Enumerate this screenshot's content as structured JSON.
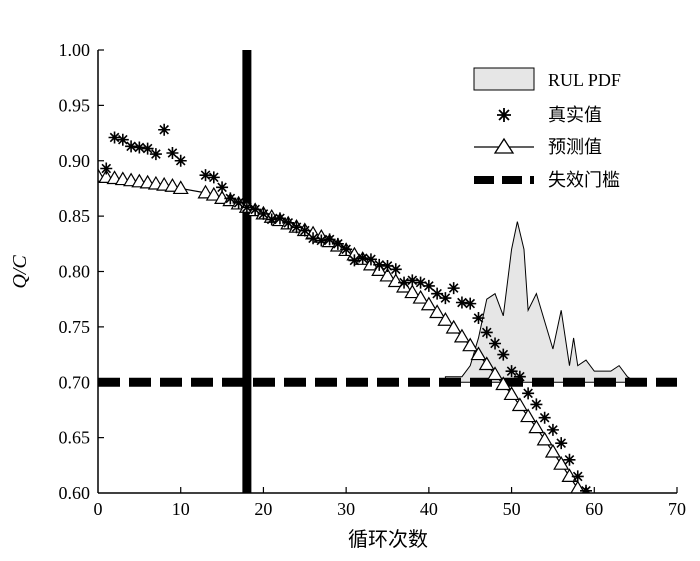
{
  "chart_data": {
    "type": "line",
    "xlabel": "循环次数",
    "ylabel": "Q/C",
    "xlim": [
      0,
      70
    ],
    "ylim": [
      0.6,
      1.0
    ],
    "xticks": [
      "0",
      "10",
      "20",
      "30",
      "40",
      "50",
      "60",
      "70"
    ],
    "yticks": [
      "0.60",
      "0.65",
      "0.70",
      "0.75",
      "0.80",
      "0.85",
      "0.90",
      "0.95",
      "1.00"
    ],
    "grid": false,
    "legend_position": "top-right",
    "prediction_start_x": 18,
    "threshold": 0.7,
    "series": [
      {
        "name": "RUL PDF",
        "kind": "pdf-area",
        "baseline": 0.7,
        "x": [
          42,
          44,
          45,
          46,
          47,
          48,
          49,
          50,
          50.7,
          51.5,
          52,
          53,
          54,
          55,
          56,
          57,
          57.5,
          58,
          59,
          60,
          61,
          62,
          63,
          64,
          65
        ],
        "y": [
          0.705,
          0.705,
          0.715,
          0.74,
          0.775,
          0.78,
          0.76,
          0.82,
          0.845,
          0.82,
          0.765,
          0.78,
          0.755,
          0.73,
          0.765,
          0.715,
          0.74,
          0.715,
          0.72,
          0.71,
          0.71,
          0.71,
          0.715,
          0.705,
          0.7
        ]
      },
      {
        "name": "真实值",
        "kind": "markers",
        "marker": "star",
        "x": [
          1,
          2,
          3,
          4,
          5,
          6,
          7,
          8,
          9,
          10,
          13,
          14,
          15,
          16,
          17,
          18,
          19,
          20,
          21,
          22,
          23,
          24,
          25,
          26,
          27,
          28,
          29,
          30,
          31,
          32,
          33,
          34,
          35,
          36,
          37,
          38,
          39,
          40,
          41,
          42,
          43,
          44,
          45,
          46,
          47,
          48,
          49,
          50,
          51,
          52,
          53,
          54,
          55,
          56,
          57,
          58,
          59
        ],
        "y": [
          0.893,
          0.921,
          0.919,
          0.913,
          0.912,
          0.911,
          0.906,
          0.928,
          0.907,
          0.9,
          0.887,
          0.885,
          0.876,
          0.866,
          0.862,
          0.858,
          0.856,
          0.852,
          0.847,
          0.848,
          0.844,
          0.84,
          0.837,
          0.83,
          0.828,
          0.829,
          0.825,
          0.82,
          0.81,
          0.812,
          0.811,
          0.806,
          0.805,
          0.802,
          0.79,
          0.792,
          0.79,
          0.787,
          0.78,
          0.776,
          0.785,
          0.772,
          0.771,
          0.758,
          0.745,
          0.735,
          0.725,
          0.71,
          0.705,
          0.69,
          0.68,
          0.668,
          0.657,
          0.645,
          0.63,
          0.615,
          0.602
        ]
      },
      {
        "name": "预测值",
        "kind": "line-markers",
        "marker": "triangle",
        "x": [
          0,
          1,
          2,
          3,
          4,
          5,
          6,
          7,
          8,
          9,
          10,
          13,
          14,
          15,
          16,
          17,
          18,
          19,
          20,
          21,
          22,
          23,
          24,
          25,
          26,
          27,
          28,
          29,
          30,
          31,
          32,
          33,
          34,
          35,
          36,
          37,
          38,
          39,
          40,
          41,
          42,
          43,
          44,
          45,
          46,
          47,
          48,
          49,
          50,
          51,
          52,
          53,
          54,
          55,
          56,
          57,
          58,
          59
        ],
        "y": [
          0.886,
          0.885,
          0.884,
          0.883,
          0.882,
          0.881,
          0.88,
          0.879,
          0.878,
          0.877,
          0.875,
          0.871,
          0.869,
          0.866,
          0.864,
          0.861,
          0.858,
          0.855,
          0.852,
          0.849,
          0.846,
          0.843,
          0.84,
          0.837,
          0.834,
          0.831,
          0.827,
          0.823,
          0.819,
          0.815,
          0.811,
          0.806,
          0.801,
          0.796,
          0.791,
          0.786,
          0.781,
          0.776,
          0.77,
          0.763,
          0.756,
          0.749,
          0.741,
          0.733,
          0.725,
          0.716,
          0.707,
          0.698,
          0.689,
          0.679,
          0.669,
          0.659,
          0.648,
          0.637,
          0.626,
          0.615,
          0.604,
          0.599
        ]
      },
      {
        "name": "失效门槛",
        "kind": "dashed-threshold",
        "value": 0.7
      }
    ]
  },
  "colors": {
    "axis": "#000000",
    "pdf_fill": "#e6e6e6",
    "line": "#000000"
  }
}
